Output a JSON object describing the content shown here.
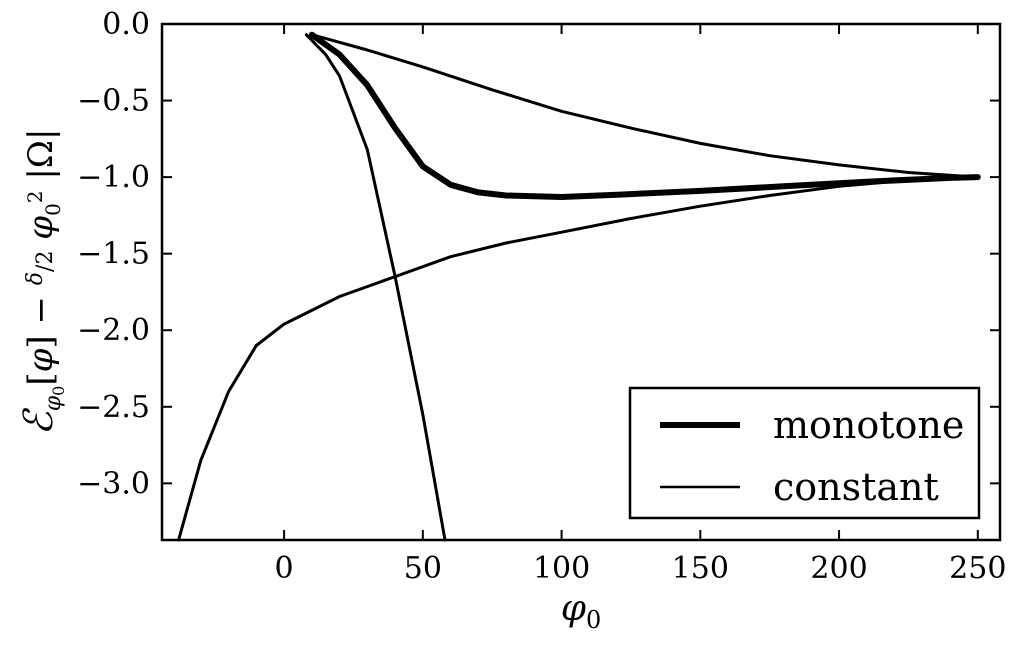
{
  "chart_data": {
    "type": "line",
    "xlabel": "φ0",
    "ylabel": "ℰφ0[φ] − δ/2 φ0² |Ω|",
    "xlim": [
      -44,
      258
    ],
    "ylim": [
      -3.37,
      0.0
    ],
    "xticks": [
      0,
      50,
      100,
      150,
      200,
      250
    ],
    "yticks": [
      0.0,
      -0.5,
      -1.0,
      -1.5,
      -2.0,
      -2.5,
      -3.0
    ],
    "xtick_labels": [
      "0",
      "50",
      "100",
      "150",
      "200",
      "250"
    ],
    "ytick_labels": [
      "0.0",
      "−0.5",
      "−1.0",
      "−1.5",
      "−2.0",
      "−2.5",
      "−3.0"
    ],
    "grid": false,
    "legend_position": "lower-right",
    "legend": [
      {
        "label": "monotone",
        "style": "thick"
      },
      {
        "label": "constant",
        "style": "thin"
      }
    ],
    "series": [
      {
        "name": "monotone",
        "style": "thick",
        "color": "#000000",
        "points": [
          [
            10,
            -0.07
          ],
          [
            20,
            -0.2
          ],
          [
            30,
            -0.4
          ],
          [
            40,
            -0.68
          ],
          [
            50,
            -0.93
          ],
          [
            60,
            -1.05
          ],
          [
            70,
            -1.1
          ],
          [
            80,
            -1.12
          ],
          [
            90,
            -1.125
          ],
          [
            100,
            -1.13
          ],
          [
            120,
            -1.115
          ],
          [
            150,
            -1.09
          ],
          [
            180,
            -1.06
          ],
          [
            210,
            -1.03
          ],
          [
            240,
            -1.005
          ],
          [
            250,
            -1.0
          ]
        ]
      },
      {
        "name": "constant",
        "style": "thin",
        "color": "#000000",
        "points": [
          [
            8,
            -0.07
          ],
          [
            15,
            -0.2
          ],
          [
            20,
            -0.34
          ],
          [
            30,
            -0.82
          ],
          [
            40,
            -1.65
          ],
          [
            50,
            -2.55
          ],
          [
            58,
            -3.37
          ]
        ]
      },
      {
        "name": "constant",
        "style": "thin",
        "color": "#000000",
        "points": [
          [
            10,
            -0.07
          ],
          [
            30,
            -0.17
          ],
          [
            50,
            -0.28
          ],
          [
            75,
            -0.43
          ],
          [
            100,
            -0.57
          ],
          [
            125,
            -0.68
          ],
          [
            150,
            -0.78
          ],
          [
            175,
            -0.86
          ],
          [
            200,
            -0.92
          ],
          [
            225,
            -0.97
          ],
          [
            250,
            -1.0
          ]
        ]
      },
      {
        "name": "constant",
        "style": "thin",
        "color": "#000000",
        "points": [
          [
            -38,
            -3.37
          ],
          [
            -30,
            -2.85
          ],
          [
            -20,
            -2.4
          ],
          [
            -10,
            -2.1
          ],
          [
            0,
            -1.96
          ],
          [
            20,
            -1.78
          ],
          [
            40,
            -1.65
          ],
          [
            60,
            -1.52
          ],
          [
            80,
            -1.43
          ],
          [
            100,
            -1.36
          ],
          [
            125,
            -1.27
          ],
          [
            150,
            -1.19
          ],
          [
            175,
            -1.12
          ],
          [
            200,
            -1.06
          ],
          [
            225,
            -1.02
          ],
          [
            250,
            -1.0
          ]
        ]
      }
    ]
  }
}
